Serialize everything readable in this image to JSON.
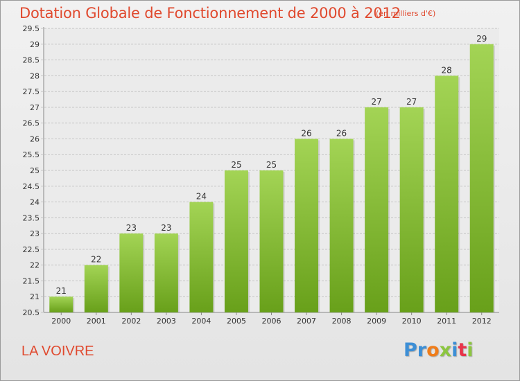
{
  "header": {
    "title": "Dotation Globale de Fonctionnement de 2000 à 2012",
    "unit": "(en milliers d'€)"
  },
  "footer": {
    "commune": "LA VOIVRE",
    "logo": {
      "letters": [
        "P",
        "r",
        "o",
        "x",
        "i",
        "t",
        "i"
      ],
      "colors": [
        "#3d8fd6",
        "#3d8fd6",
        "#f07d1a",
        "#8cc63f",
        "#3d8fd6",
        "#e8344a",
        "#8cc63f"
      ]
    }
  },
  "colors": {
    "bar_light": "#a3d455",
    "bar_dark": "#68a01a",
    "grid": "#c4c4c4",
    "axis_text": "#333333",
    "title": "#e0492e"
  },
  "chart_data": {
    "type": "bar",
    "title": "Dotation Globale de Fonctionnement de 2000 à 2012",
    "subtitle": "(en milliers d'€)",
    "xlabel": "",
    "ylabel": "",
    "categories": [
      "2000",
      "2001",
      "2002",
      "2003",
      "2004",
      "2005",
      "2006",
      "2007",
      "2008",
      "2009",
      "2010",
      "2011",
      "2012"
    ],
    "values": [
      21,
      22,
      23,
      23,
      24,
      25,
      25,
      26,
      26,
      27,
      27,
      28,
      29
    ],
    "data_labels": [
      "21",
      "22",
      "23",
      "23",
      "24",
      "25",
      "25",
      "26",
      "26",
      "27",
      "27",
      "28",
      "29"
    ],
    "ylim": [
      20.5,
      29.5
    ],
    "yticks": [
      20.5,
      21,
      21.5,
      22,
      22.5,
      23,
      23.5,
      24,
      24.5,
      25,
      25.5,
      26,
      26.5,
      27,
      27.5,
      28,
      28.5,
      29,
      29.5
    ],
    "ytick_labels": [
      "20.5",
      "21",
      "21.5",
      "22",
      "22.5",
      "23",
      "23.5",
      "24",
      "24.5",
      "25",
      "25.5",
      "26",
      "26.5",
      "27",
      "27.5",
      "28",
      "28.5",
      "29",
      "29.5"
    ],
    "grid": true,
    "legend": "none"
  }
}
